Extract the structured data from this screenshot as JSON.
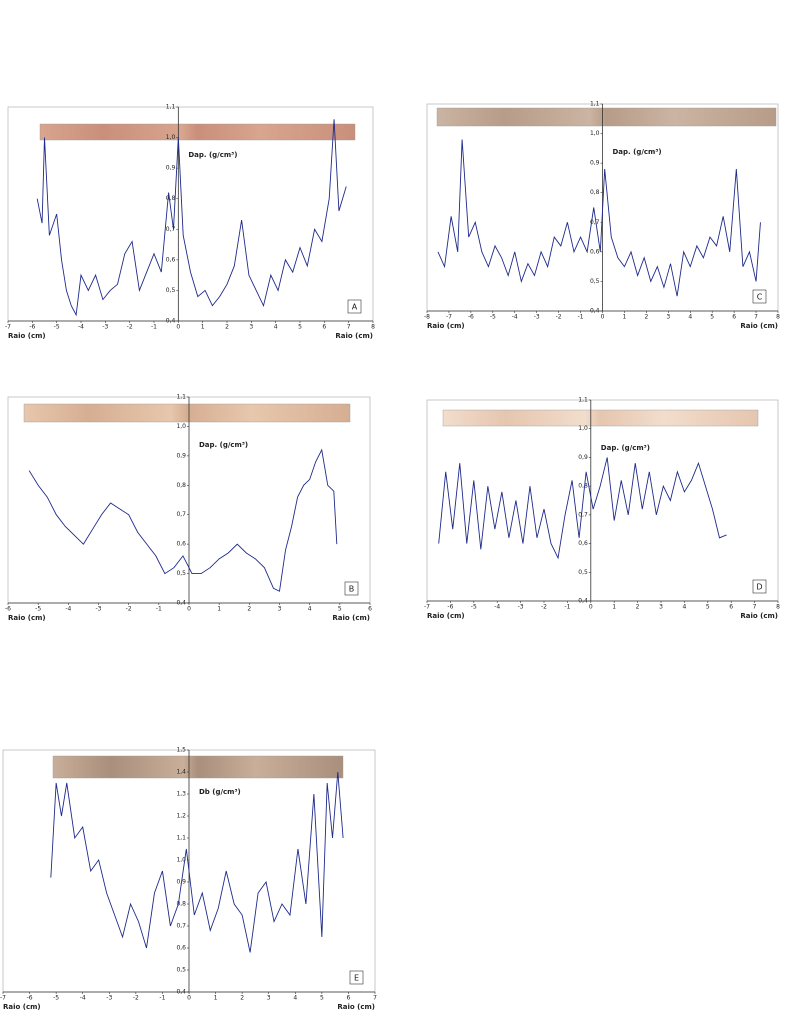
{
  "chart_data": [
    {
      "type": "line",
      "panel": "A",
      "y_label": "Dap. (g/cm³)",
      "x_label": "Raio (cm)",
      "color": "#1f2a8a",
      "grid": false,
      "xlim": [
        -7,
        8
      ],
      "ylim": [
        0.4,
        1.1
      ],
      "xticks": [
        -7,
        -6,
        -5,
        -4,
        -3,
        -2,
        -1,
        0,
        1,
        2,
        3,
        4,
        5,
        6,
        7,
        8
      ],
      "yticks": [
        {
          "value": 0.4,
          "label": "0,4"
        },
        {
          "value": 0.5,
          "label": "0,5"
        },
        {
          "value": 0.6,
          "label": "0,6"
        },
        {
          "value": 0.7,
          "label": "0,7"
        },
        {
          "value": 0.8,
          "label": "0,8"
        },
        {
          "value": 0.9,
          "label": "0,9"
        },
        {
          "value": 1.0,
          "label": "1,0"
        },
        {
          "value": 1.1,
          "label": "1,1"
        }
      ],
      "x": [
        -5.8,
        -5.6,
        -5.5,
        -5.3,
        -5.0,
        -4.8,
        -4.6,
        -4.4,
        -4.2,
        -4.0,
        -3.7,
        -3.4,
        -3.1,
        -2.8,
        -2.5,
        -2.2,
        -1.9,
        -1.6,
        -1.3,
        -1.0,
        -0.7,
        -0.4,
        -0.2,
        0.0,
        0.2,
        0.5,
        0.8,
        1.1,
        1.4,
        1.7,
        2.0,
        2.3,
        2.6,
        2.9,
        3.2,
        3.5,
        3.8,
        4.1,
        4.4,
        4.7,
        5.0,
        5.3,
        5.6,
        5.9,
        6.2,
        6.4,
        6.6,
        6.9
      ],
      "values": [
        0.8,
        0.72,
        1.0,
        0.68,
        0.75,
        0.6,
        0.5,
        0.45,
        0.42,
        0.55,
        0.5,
        0.55,
        0.47,
        0.5,
        0.52,
        0.62,
        0.66,
        0.5,
        0.56,
        0.62,
        0.56,
        0.82,
        0.7,
        1.0,
        0.68,
        0.56,
        0.48,
        0.5,
        0.45,
        0.48,
        0.52,
        0.58,
        0.73,
        0.55,
        0.5,
        0.45,
        0.55,
        0.5,
        0.6,
        0.56,
        0.64,
        0.58,
        0.7,
        0.66,
        0.8,
        1.06,
        0.76,
        0.84
      ]
    },
    {
      "type": "line",
      "panel": "C",
      "y_label": "Dap. (g/cm³)",
      "x_label": "Raio (cm)",
      "color": "#1f2a8a",
      "grid": false,
      "xlim": [
        -8,
        8
      ],
      "ylim": [
        0.4,
        1.1
      ],
      "xticks": [
        -8,
        -7,
        -6,
        -5,
        -4,
        -3,
        -2,
        -1,
        0,
        1,
        2,
        3,
        4,
        5,
        6,
        7,
        8
      ],
      "yticks": [
        {
          "value": 0.4,
          "label": "0,4"
        },
        {
          "value": 0.5,
          "label": "0,5"
        },
        {
          "value": 0.6,
          "label": "0,6"
        },
        {
          "value": 0.7,
          "label": "0,7"
        },
        {
          "value": 0.8,
          "label": "0,8"
        },
        {
          "value": 0.9,
          "label": "0,9"
        },
        {
          "value": 1.0,
          "label": "1,0"
        },
        {
          "value": 1.1,
          "label": "1,1"
        }
      ],
      "x": [
        -7.5,
        -7.2,
        -6.9,
        -6.6,
        -6.4,
        -6.1,
        -5.8,
        -5.5,
        -5.2,
        -4.9,
        -4.6,
        -4.3,
        -4.0,
        -3.7,
        -3.4,
        -3.1,
        -2.8,
        -2.5,
        -2.2,
        -1.9,
        -1.6,
        -1.3,
        -1.0,
        -0.7,
        -0.4,
        -0.1,
        0.1,
        0.4,
        0.7,
        1.0,
        1.3,
        1.6,
        1.9,
        2.2,
        2.5,
        2.8,
        3.1,
        3.4,
        3.7,
        4.0,
        4.3,
        4.6,
        4.9,
        5.2,
        5.5,
        5.8,
        6.1,
        6.4,
        6.7,
        7.0,
        7.2
      ],
      "values": [
        0.6,
        0.55,
        0.72,
        0.6,
        0.98,
        0.65,
        0.7,
        0.6,
        0.55,
        0.62,
        0.58,
        0.52,
        0.6,
        0.5,
        0.56,
        0.52,
        0.6,
        0.55,
        0.65,
        0.62,
        0.7,
        0.6,
        0.65,
        0.6,
        0.75,
        0.6,
        0.88,
        0.65,
        0.58,
        0.55,
        0.6,
        0.52,
        0.58,
        0.5,
        0.55,
        0.48,
        0.56,
        0.45,
        0.6,
        0.55,
        0.62,
        0.58,
        0.65,
        0.62,
        0.72,
        0.6,
        0.88,
        0.55,
        0.6,
        0.5,
        0.7
      ]
    },
    {
      "type": "line",
      "panel": "B",
      "y_label": "Dap. (g/cm³)",
      "x_label": "Raio (cm)",
      "color": "#1f2a8a",
      "grid": false,
      "xlim": [
        -6,
        6
      ],
      "ylim": [
        0.4,
        1.1
      ],
      "xticks": [
        -6,
        -5,
        -4,
        -3,
        -2,
        -1,
        0,
        1,
        2,
        3,
        4,
        5,
        6
      ],
      "yticks": [
        {
          "value": 0.4,
          "label": "0,4"
        },
        {
          "value": 0.5,
          "label": "0,5"
        },
        {
          "value": 0.6,
          "label": "0,6"
        },
        {
          "value": 0.7,
          "label": "0,7"
        },
        {
          "value": 0.8,
          "label": "0,8"
        },
        {
          "value": 0.9,
          "label": "0,9"
        },
        {
          "value": 1.0,
          "label": "1,0"
        },
        {
          "value": 1.1,
          "label": "1,1"
        }
      ],
      "x": [
        -5.3,
        -5.0,
        -4.7,
        -4.4,
        -4.1,
        -3.8,
        -3.5,
        -3.2,
        -2.9,
        -2.6,
        -2.3,
        -2.0,
        -1.7,
        -1.4,
        -1.1,
        -0.8,
        -0.5,
        -0.2,
        0.1,
        0.4,
        0.7,
        1.0,
        1.3,
        1.6,
        1.9,
        2.2,
        2.5,
        2.8,
        3.0,
        3.2,
        3.4,
        3.6,
        3.8,
        4.0,
        4.2,
        4.4,
        4.6,
        4.8,
        4.9
      ],
      "values": [
        0.85,
        0.8,
        0.76,
        0.7,
        0.66,
        0.63,
        0.6,
        0.65,
        0.7,
        0.74,
        0.72,
        0.7,
        0.64,
        0.6,
        0.56,
        0.5,
        0.52,
        0.56,
        0.5,
        0.5,
        0.52,
        0.55,
        0.57,
        0.6,
        0.57,
        0.55,
        0.52,
        0.45,
        0.44,
        0.58,
        0.66,
        0.76,
        0.8,
        0.82,
        0.88,
        0.92,
        0.8,
        0.78,
        0.6
      ]
    },
    {
      "type": "line",
      "panel": "D",
      "y_label": "Dap. (g/cm³)",
      "x_label": "Raio (cm)",
      "color": "#1f2a8a",
      "grid": false,
      "xlim": [
        -7,
        8
      ],
      "ylim": [
        0.4,
        1.1
      ],
      "xticks": [
        -7,
        -6,
        -5,
        -4,
        -3,
        -2,
        -1,
        0,
        1,
        2,
        3,
        4,
        5,
        6,
        7,
        8
      ],
      "yticks": [
        {
          "value": 0.4,
          "label": "0,4"
        },
        {
          "value": 0.5,
          "label": "0,5"
        },
        {
          "value": 0.6,
          "label": "0,6"
        },
        {
          "value": 0.7,
          "label": "0,7"
        },
        {
          "value": 0.8,
          "label": "0,8"
        },
        {
          "value": 0.9,
          "label": "0,9"
        },
        {
          "value": 1.0,
          "label": "1,0"
        },
        {
          "value": 1.1,
          "label": "1,1"
        }
      ],
      "x": [
        -6.5,
        -6.2,
        -5.9,
        -5.6,
        -5.3,
        -5.0,
        -4.7,
        -4.4,
        -4.1,
        -3.8,
        -3.5,
        -3.2,
        -2.9,
        -2.6,
        -2.3,
        -2.0,
        -1.7,
        -1.4,
        -1.1,
        -0.8,
        -0.5,
        -0.2,
        0.1,
        0.4,
        0.7,
        1.0,
        1.3,
        1.6,
        1.9,
        2.2,
        2.5,
        2.8,
        3.1,
        3.4,
        3.7,
        4.0,
        4.3,
        4.6,
        4.9,
        5.2,
        5.5,
        5.8
      ],
      "values": [
        0.6,
        0.85,
        0.65,
        0.88,
        0.6,
        0.82,
        0.58,
        0.8,
        0.65,
        0.78,
        0.62,
        0.75,
        0.6,
        0.8,
        0.62,
        0.72,
        0.6,
        0.55,
        0.7,
        0.82,
        0.62,
        0.85,
        0.72,
        0.8,
        0.9,
        0.68,
        0.82,
        0.7,
        0.88,
        0.72,
        0.85,
        0.7,
        0.8,
        0.75,
        0.85,
        0.78,
        0.82,
        0.88,
        0.8,
        0.72,
        0.62,
        0.63
      ]
    },
    {
      "type": "line",
      "panel": "E",
      "y_label": "Db (g/cm³)",
      "x_label": "Raio (cm)",
      "color": "#1f2a8a",
      "grid": false,
      "xlim": [
        -7,
        7
      ],
      "ylim": [
        0.4,
        1.5
      ],
      "xticks": [
        -7,
        -6,
        -5,
        -4,
        -3,
        -2,
        -1,
        0,
        1,
        2,
        3,
        4,
        5,
        6,
        7
      ],
      "yticks": [
        {
          "value": 0.4,
          "label": "0,4"
        },
        {
          "value": 0.5,
          "label": "0,5"
        },
        {
          "value": 0.6,
          "label": "0,6"
        },
        {
          "value": 0.7,
          "label": "0,7"
        },
        {
          "value": 0.8,
          "label": "0,8"
        },
        {
          "value": 0.9,
          "label": "0,9"
        },
        {
          "value": 1.0,
          "label": "1,0"
        },
        {
          "value": 1.1,
          "label": "1,1"
        },
        {
          "value": 1.2,
          "label": "1,2"
        },
        {
          "value": 1.3,
          "label": "1,3"
        },
        {
          "value": 1.4,
          "label": "1,4"
        },
        {
          "value": 1.5,
          "label": "1,5"
        }
      ],
      "x": [
        -5.2,
        -5.0,
        -4.8,
        -4.6,
        -4.3,
        -4.0,
        -3.7,
        -3.4,
        -3.1,
        -2.8,
        -2.5,
        -2.2,
        -1.9,
        -1.6,
        -1.3,
        -1.0,
        -0.7,
        -0.4,
        -0.1,
        0.2,
        0.5,
        0.8,
        1.1,
        1.4,
        1.7,
        2.0,
        2.3,
        2.6,
        2.9,
        3.2,
        3.5,
        3.8,
        4.1,
        4.4,
        4.7,
        5.0,
        5.2,
        5.4,
        5.6,
        5.8
      ],
      "values": [
        0.92,
        1.35,
        1.2,
        1.35,
        1.1,
        1.15,
        0.95,
        1.0,
        0.85,
        0.75,
        0.65,
        0.8,
        0.72,
        0.6,
        0.85,
        0.95,
        0.7,
        0.8,
        1.05,
        0.75,
        0.85,
        0.68,
        0.78,
        0.95,
        0.8,
        0.75,
        0.58,
        0.85,
        0.9,
        0.72,
        0.8,
        0.75,
        1.05,
        0.8,
        1.3,
        0.65,
        1.35,
        1.1,
        1.4,
        1.1
      ]
    }
  ]
}
